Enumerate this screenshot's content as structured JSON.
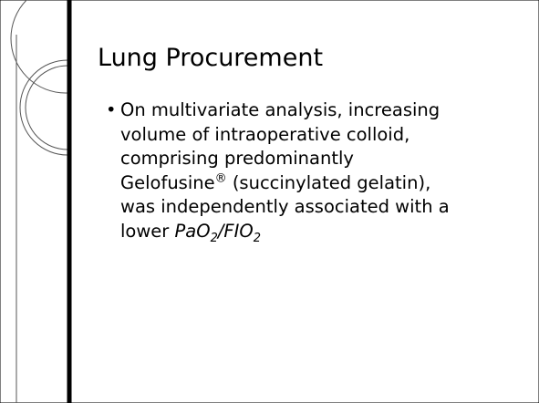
{
  "title": "Lung Procurement",
  "bullet": [
    "On multivariate analysis, increasing volume of intraoperative colloid, comprising predominantly Gelofusine",
    "®",
    " (succinylated gelatin), was independently associated with a lower ",
    "PaO",
    "2",
    "/FIO",
    "2"
  ]
}
